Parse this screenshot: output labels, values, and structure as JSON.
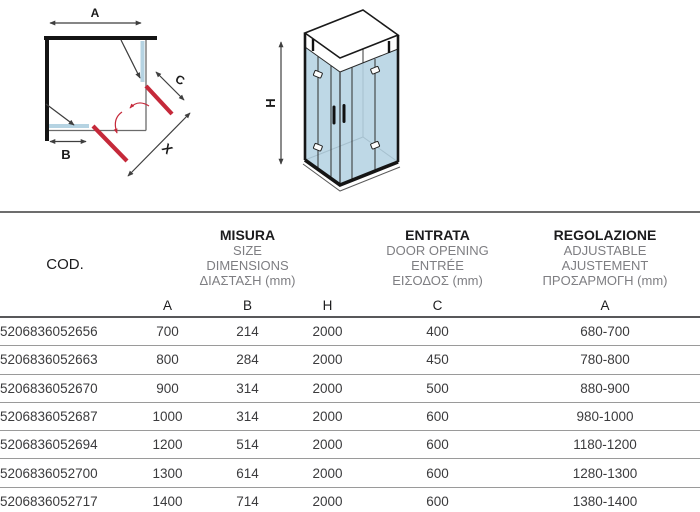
{
  "colors": {
    "glass_blue": "#b5d3e2",
    "door_red": "#c5293a",
    "line_dark": "#1c1c1c",
    "dim_line": "#3f3f3f",
    "header_gray": "#7e7e82",
    "row_line": "#9a9a9a",
    "text_dark": "#3b3b3d"
  },
  "diagrams": {
    "plan": {
      "label_a": "A",
      "label_b": "B",
      "label_c": "C",
      "label_x": "X"
    },
    "iso": {
      "label_h": "H"
    }
  },
  "table": {
    "cod_header": "COD.",
    "groups": [
      {
        "lines": [
          "MISURA",
          "SIZE",
          "DIMENSIONS",
          "ΔΙΑΣΤΑΣΗ (mm)"
        ]
      },
      {
        "lines": [
          "ENTRATA",
          "DOOR OPENING",
          "ENTRÉE",
          "ΕΙΣΟΔΟΣ (mm)"
        ]
      },
      {
        "lines": [
          "REGOLAZIONE",
          "ADJUSTABLE",
          "AJUSTEMENT",
          "ΠΡΟΣΑΡΜΟΓΗ (mm)"
        ]
      }
    ],
    "subheaders": [
      "A",
      "B",
      "H",
      "C",
      "A"
    ],
    "rows": [
      [
        "5206836052656",
        "700",
        "214",
        "2000",
        "400",
        "680-700"
      ],
      [
        "5206836052663",
        "800",
        "284",
        "2000",
        "450",
        "780-800"
      ],
      [
        "5206836052670",
        "900",
        "314",
        "2000",
        "500",
        "880-900"
      ],
      [
        "5206836052687",
        "1000",
        "314",
        "2000",
        "600",
        "980-1000"
      ],
      [
        "5206836052694",
        "1200",
        "514",
        "2000",
        "600",
        "1180-1200"
      ],
      [
        "5206836052700",
        "1300",
        "614",
        "2000",
        "600",
        "1280-1300"
      ],
      [
        "5206836052717",
        "1400",
        "714",
        "2000",
        "600",
        "1380-1400"
      ]
    ]
  }
}
